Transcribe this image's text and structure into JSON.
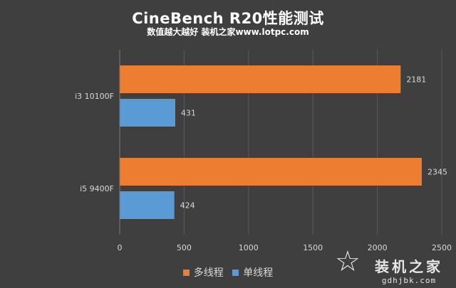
{
  "chart_data": {
    "type": "bar",
    "orientation": "horizontal",
    "title": "CineBench R20性能测试",
    "subtitle": "数值越大越好 装机之家www.lotpc.com",
    "categories": [
      "i3 10100F",
      "i5 9400F"
    ],
    "series": [
      {
        "name": "多线程",
        "color": "#ed7d31",
        "values": [
          2181,
          2345
        ]
      },
      {
        "name": "单线程",
        "color": "#5b9bd5",
        "values": [
          431,
          424
        ]
      }
    ],
    "xlim": [
      0,
      2500
    ],
    "xticks": [
      "0",
      "500",
      "1000",
      "1500",
      "2000",
      "2500"
    ],
    "grid": true,
    "legend_position": "bottom",
    "watermark": {
      "main": "装机之家",
      "sub": "gdhjbk.com"
    }
  }
}
